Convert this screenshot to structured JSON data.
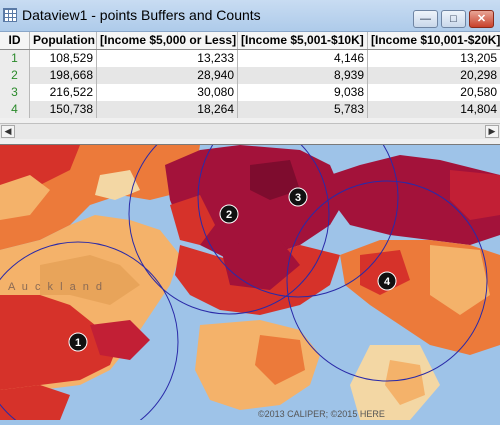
{
  "window": {
    "title": "Dataview1 - points Buffers and Counts",
    "controls": {
      "minimize": "—",
      "maximize": "□",
      "close": "✕"
    }
  },
  "table": {
    "columns": [
      "ID",
      "Population",
      "[Income $5,000 or Less]",
      "[Income $5,001-$10K]",
      "[Income $10,001-$20K]"
    ],
    "rows": [
      [
        "1",
        "108,529",
        "13,233",
        "4,146",
        "13,205"
      ],
      [
        "2",
        "198,668",
        "28,940",
        "8,939",
        "20,298"
      ],
      [
        "3",
        "216,522",
        "30,080",
        "9,038",
        "20,580"
      ],
      [
        "4",
        "150,738",
        "18,264",
        "5,783",
        "14,804"
      ]
    ]
  },
  "scrollbar": {
    "left_arrow": "◀",
    "right_arrow": "▶"
  },
  "map": {
    "copyright": "©2013 CALIPER; ©2015 HERE",
    "place_label": "A u c k l a n d",
    "points": [
      {
        "id": "1",
        "label": "1"
      },
      {
        "id": "2",
        "label": "2"
      },
      {
        "id": "3",
        "label": "3"
      },
      {
        "id": "4",
        "label": "4"
      }
    ],
    "colors": {
      "water": "#9ec3e8",
      "dark": "#a3123a",
      "red": "#d6322a",
      "orange": "#ec7a3a",
      "light_orange": "#f4b26a",
      "tan": "#f3d7a4",
      "buffer_ring": "#2a2aa8"
    }
  }
}
